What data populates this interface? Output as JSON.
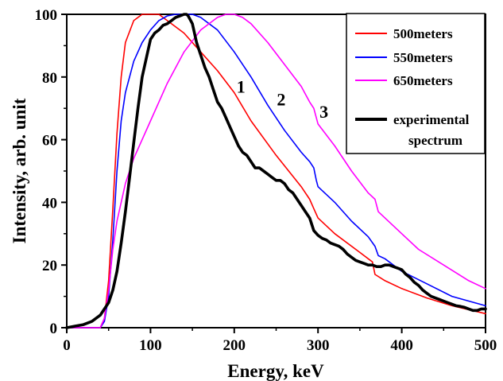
{
  "chart_data": {
    "type": "line",
    "xlabel": "Energy, keV",
    "ylabel": "Intensity,  arb. unit",
    "xlim": [
      0,
      500
    ],
    "ylim": [
      0,
      100
    ],
    "xticks": [
      0,
      100,
      200,
      300,
      400,
      500
    ],
    "yticks": [
      0,
      20,
      40,
      60,
      80,
      100
    ],
    "grid": false,
    "legend_position": "top-right",
    "series": [
      {
        "name": "500meters",
        "color": "#ff0000",
        "width": 1.6,
        "x": [
          0,
          20,
          40,
          45,
          50,
          55,
          60,
          65,
          70,
          80,
          90,
          100,
          110,
          120,
          140,
          160,
          180,
          200,
          220,
          250,
          280,
          290,
          295,
          300,
          320,
          350,
          365,
          368,
          380,
          400,
          430,
          460,
          500
        ],
        "y": [
          0,
          0,
          0,
          3,
          15,
          38,
          62,
          80,
          91,
          98,
          100,
          100,
          100,
          98,
          94,
          88,
          82,
          75,
          66,
          55,
          45,
          41,
          38,
          35,
          30,
          24,
          21,
          17,
          15,
          12.5,
          9.5,
          7,
          4.5
        ]
      },
      {
        "name": "550meters",
        "color": "#0000ff",
        "width": 1.6,
        "x": [
          0,
          20,
          40,
          45,
          50,
          55,
          60,
          65,
          70,
          80,
          90,
          100,
          110,
          120,
          130,
          140,
          150,
          160,
          180,
          200,
          220,
          240,
          260,
          280,
          290,
          295,
          298,
          300,
          320,
          340,
          360,
          368,
          372,
          380,
          400,
          430,
          460,
          500
        ],
        "y": [
          0,
          0,
          0,
          2,
          10,
          28,
          50,
          66,
          75,
          85,
          91,
          95,
          98,
          99.5,
          100,
          100,
          100,
          99,
          95,
          88,
          80,
          71,
          63,
          56,
          53,
          51,
          47,
          45,
          40,
          34,
          29,
          26,
          23,
          22,
          18,
          14,
          10,
          7
        ]
      },
      {
        "name": "650meters",
        "color": "#ff00ff",
        "width": 1.6,
        "x": [
          0,
          20,
          40,
          45,
          50,
          55,
          60,
          70,
          80,
          100,
          120,
          140,
          160,
          180,
          190,
          200,
          210,
          220,
          240,
          260,
          280,
          290,
          295,
          300,
          320,
          340,
          360,
          368,
          372,
          380,
          400,
          420,
          450,
          480,
          500
        ],
        "y": [
          0,
          0,
          0,
          3,
          12,
          25,
          34,
          46,
          54,
          66,
          78,
          88,
          95,
          99,
          100,
          100,
          99,
          97,
          91,
          84,
          77,
          72,
          70,
          65,
          58,
          50,
          43,
          41,
          37,
          35,
          30,
          25,
          20,
          15,
          12.5
        ]
      },
      {
        "name": "experimental spectrum",
        "color": "#000000",
        "width": 3.6,
        "x": [
          0,
          10,
          20,
          30,
          40,
          45,
          50,
          55,
          60,
          65,
          70,
          75,
          80,
          85,
          90,
          95,
          100,
          105,
          110,
          115,
          120,
          125,
          130,
          135,
          140,
          143,
          145,
          150,
          155,
          160,
          165,
          170,
          175,
          180,
          185,
          190,
          195,
          200,
          205,
          210,
          215,
          220,
          225,
          230,
          235,
          240,
          245,
          250,
          255,
          260,
          265,
          270,
          275,
          280,
          285,
          290,
          295,
          300,
          305,
          310,
          315,
          320,
          325,
          330,
          335,
          340,
          345,
          350,
          355,
          360,
          365,
          370,
          375,
          380,
          385,
          390,
          395,
          400,
          405,
          410,
          415,
          420,
          425,
          430,
          435,
          440,
          445,
          450,
          455,
          460,
          465,
          470,
          475,
          480,
          485,
          490,
          495,
          500
        ],
        "y": [
          0,
          0.5,
          1,
          2,
          4,
          6,
          8,
          12,
          18,
          27,
          37,
          48,
          59,
          70,
          80,
          86,
          92,
          94,
          95,
          96.5,
          97,
          98,
          99,
          99.5,
          100,
          100,
          99.5,
          97,
          91,
          87,
          83,
          80,
          76,
          72,
          70,
          67,
          64,
          61,
          58,
          56,
          55,
          53,
          51,
          51,
          50,
          49,
          48,
          47,
          47,
          46,
          44,
          43,
          41,
          39,
          37,
          35,
          31,
          29.5,
          28.5,
          28,
          27,
          26.5,
          26,
          25,
          23.5,
          22.5,
          21.5,
          21,
          20.5,
          20,
          20,
          19.5,
          19.5,
          20,
          20,
          19.5,
          19,
          18.5,
          17,
          16,
          14.5,
          13.5,
          12,
          11,
          10,
          9.5,
          9,
          8.5,
          8,
          7.5,
          7,
          6.8,
          6.5,
          6,
          5.5,
          5.5,
          6,
          6
        ]
      }
    ],
    "legend": {
      "entries": [
        {
          "label": "500meters",
          "color": "#ff0000"
        },
        {
          "label": "550meters",
          "color": "#0000ff"
        },
        {
          "label": "650meters",
          "color": "#ff00ff"
        },
        {
          "label_lines": [
            "experimental",
            "spectrum"
          ],
          "color": "#000000"
        }
      ]
    },
    "annotations": [
      {
        "text": "1",
        "x": 208,
        "y": 75
      },
      {
        "text": "2",
        "x": 256,
        "y": 71
      },
      {
        "text": "3",
        "x": 307,
        "y": 67
      }
    ]
  }
}
